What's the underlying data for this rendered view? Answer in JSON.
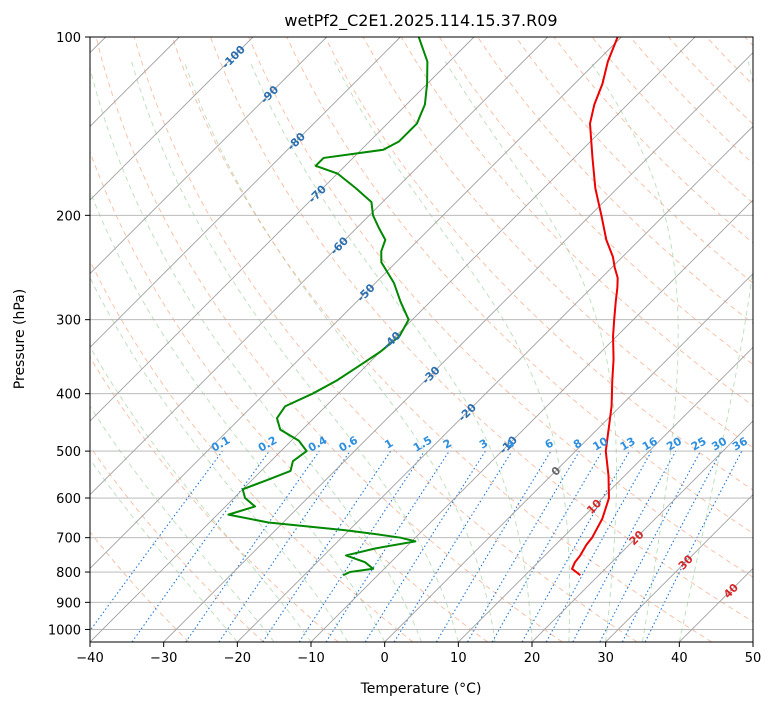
{
  "chart_data": {
    "type": "line",
    "title": "wetPf2_C2E1.2025.114.15.37.R09",
    "xlabel": "Temperature (°C)",
    "ylabel": "Pressure (hPa)",
    "xlim": [
      -40,
      50
    ],
    "ylim": [
      1050,
      100
    ],
    "y_scale": "log",
    "x_ticks": [
      -40,
      -30,
      -20,
      -10,
      0,
      10,
      20,
      30,
      40,
      50
    ],
    "x_tick_labels": [
      "−40",
      "−30",
      "−20",
      "−10",
      "0",
      "10",
      "20",
      "30",
      "40",
      "50"
    ],
    "y_ticks": [
      100,
      200,
      300,
      400,
      500,
      600,
      700,
      800,
      900,
      1000
    ],
    "y_tick_labels": [
      "100",
      "200",
      "300",
      "400",
      "500",
      "600",
      "700",
      "800",
      "900",
      "1000"
    ],
    "grid": true,
    "isotherm_labels": [
      "-100",
      "-90",
      "-80",
      "-70",
      "-60",
      "-50",
      "-40",
      "-30",
      "-20",
      "-10",
      "0",
      "10",
      "20",
      "30",
      "40"
    ],
    "isotherm_label_values": [
      -100,
      -90,
      -80,
      -70,
      -60,
      -50,
      -40,
      -30,
      -20,
      -10,
      0,
      10,
      20,
      30,
      40
    ],
    "mixing_ratio_labels": [
      "0.1",
      "0.2",
      "0.4",
      "0.6",
      "1",
      "1.5",
      "2",
      "3",
      "4",
      "6",
      "8",
      "10",
      "13",
      "16",
      "20",
      "25",
      "30",
      "36"
    ],
    "mixing_ratio_values": [
      0.1,
      0.2,
      0.4,
      0.6,
      1,
      1.5,
      2,
      3,
      4,
      6,
      8,
      10,
      13,
      16,
      20,
      25,
      30,
      36
    ],
    "series": [
      {
        "kind": "temperature",
        "color": "#ee0000",
        "pressure": [
          810,
          790,
          770,
          750,
          720,
          700,
          650,
          600,
          550,
          500,
          450,
          420,
          380,
          350,
          320,
          300,
          280,
          265,
          255,
          245,
          235,
          220,
          200,
          180,
          160,
          140,
          130,
          120,
          110,
          100
        ],
        "temperature": [
          17.5,
          15.5,
          15.0,
          14.8,
          14.2,
          14.0,
          12.8,
          10.9,
          7.8,
          4.1,
          0.9,
          -1.2,
          -4.6,
          -7.3,
          -10.5,
          -12.6,
          -14.8,
          -16.5,
          -17.8,
          -19.6,
          -21.3,
          -24.5,
          -28.5,
          -33.0,
          -37.5,
          -42.5,
          -44.5,
          -46.2,
          -48.5,
          -50.5
        ]
      },
      {
        "kind": "dewpoint",
        "color": "#008800",
        "pressure": [
          810,
          800,
          790,
          770,
          750,
          730,
          710,
          700,
          690,
          680,
          660,
          640,
          620,
          600,
          580,
          560,
          540,
          520,
          500,
          480,
          460,
          440,
          420,
          400,
          380,
          360,
          340,
          320,
          300,
          280,
          260,
          240,
          230,
          220,
          210,
          200,
          190,
          180,
          170,
          165,
          160,
          155,
          150,
          140,
          130,
          120,
          110,
          100
        ],
        "temperature": [
          -14.7,
          -14.2,
          -11.5,
          -13.5,
          -17.0,
          -14.0,
          -9.5,
          -12.0,
          -16.0,
          -20.5,
          -32.0,
          -38.5,
          -36.0,
          -38.5,
          -40.0,
          -38.0,
          -36.0,
          -37.0,
          -36.5,
          -39.0,
          -43.0,
          -45.0,
          -45.5,
          -43.5,
          -42.0,
          -41.0,
          -40.0,
          -39.5,
          -40.5,
          -44.0,
          -47.5,
          -52.0,
          -53.5,
          -54.5,
          -57.0,
          -59.5,
          -61.5,
          -65.5,
          -70.0,
          -74.0,
          -74.0,
          -67.0,
          -66.0,
          -66.0,
          -67.5,
          -70.0,
          -73.0,
          -77.5
        ]
      }
    ]
  }
}
